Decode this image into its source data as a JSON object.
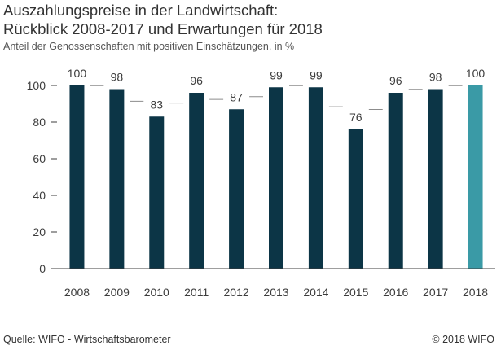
{
  "chart_data": {
    "type": "bar",
    "title": "Auszahlungspreise in der Landwirtschaft:",
    "subtitle_line2": "Rückblick 2008-2017 und Erwartungen für 2018",
    "subtitle": "Anteil der Genossenschaften mit positiven Einschätzungen, in %",
    "categories": [
      "2008",
      "2009",
      "2010",
      "2011",
      "2012",
      "2013",
      "2014",
      "2015",
      "2016",
      "2017",
      "2018"
    ],
    "values": [
      100,
      98,
      83,
      96,
      87,
      99,
      99,
      76,
      96,
      98,
      100
    ],
    "data_labels": [
      "100",
      "98",
      "83",
      "96",
      "87",
      "99",
      "99",
      "76",
      "96",
      "98",
      "100"
    ],
    "highlight_index": 10,
    "ylim": [
      0,
      100
    ],
    "yticks": [
      0,
      20,
      40,
      60,
      80,
      100
    ],
    "grid": false,
    "legend": "none",
    "colors": {
      "bar": "#0c3546",
      "highlight": "#3a9aa6",
      "connector": "#8c8c8c",
      "axis": "#3c3c3c"
    }
  },
  "footer": {
    "source": "Quelle: WIFO - Wirtschaftsbarometer",
    "copyright": "© 2018 WIFO"
  }
}
